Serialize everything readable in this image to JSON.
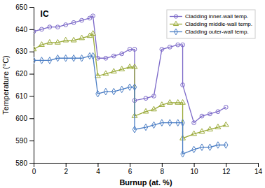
{
  "chart_data": {
    "type": "line",
    "title": "IC",
    "xlabel": "Burnup (at. %)",
    "ylabel": "Temperature (°C)",
    "xlim": [
      0,
      14
    ],
    "ylim": [
      580,
      650
    ],
    "xticks": [
      0,
      2,
      4,
      6,
      8,
      10,
      12,
      14
    ],
    "yticks": [
      580,
      590,
      600,
      610,
      620,
      630,
      640,
      650
    ],
    "grid": false,
    "legend": "upper right",
    "x": [
      0,
      0.5,
      1,
      1.5,
      2,
      2.5,
      3,
      3.5,
      3.7,
      4.0,
      4.5,
      5,
      5.5,
      6,
      6.3,
      6.3,
      7,
      7.5,
      8,
      8.5,
      9,
      9.3,
      9.3,
      10,
      10.5,
      11,
      11.5,
      12
    ],
    "series": [
      {
        "name": "Cladding inner-wall temp.",
        "color": "#7b68c8",
        "marker": "circle",
        "line_style": "solid",
        "values": [
          639,
          640,
          641,
          641,
          642,
          643,
          644,
          645,
          646,
          627,
          627,
          628,
          629,
          631,
          631,
          608,
          609,
          610,
          631,
          632,
          633,
          633,
          615,
          598,
          601,
          602,
          603,
          605
        ]
      },
      {
        "name": "Cladding middle-wall temp.",
        "color": "#9aaa38",
        "marker": "triangle",
        "line_style": "solid",
        "values": [
          631,
          633,
          634,
          634,
          635,
          635,
          636,
          637,
          638,
          619,
          620,
          621,
          622,
          623,
          623,
          601,
          603,
          604,
          606,
          607,
          607,
          607,
          591,
          593,
          594,
          595,
          596,
          597
        ]
      },
      {
        "name": "Cladding outer-wall temp.",
        "color": "#4a7dc4",
        "marker": "diamond",
        "line_style": "solid",
        "values": [
          626,
          626,
          626,
          627,
          627,
          627,
          627,
          628,
          628,
          611,
          612,
          612,
          613,
          614,
          614,
          595,
          596,
          597,
          598,
          598,
          598,
          598,
          584,
          586,
          587,
          587,
          588,
          588
        ]
      }
    ]
  }
}
